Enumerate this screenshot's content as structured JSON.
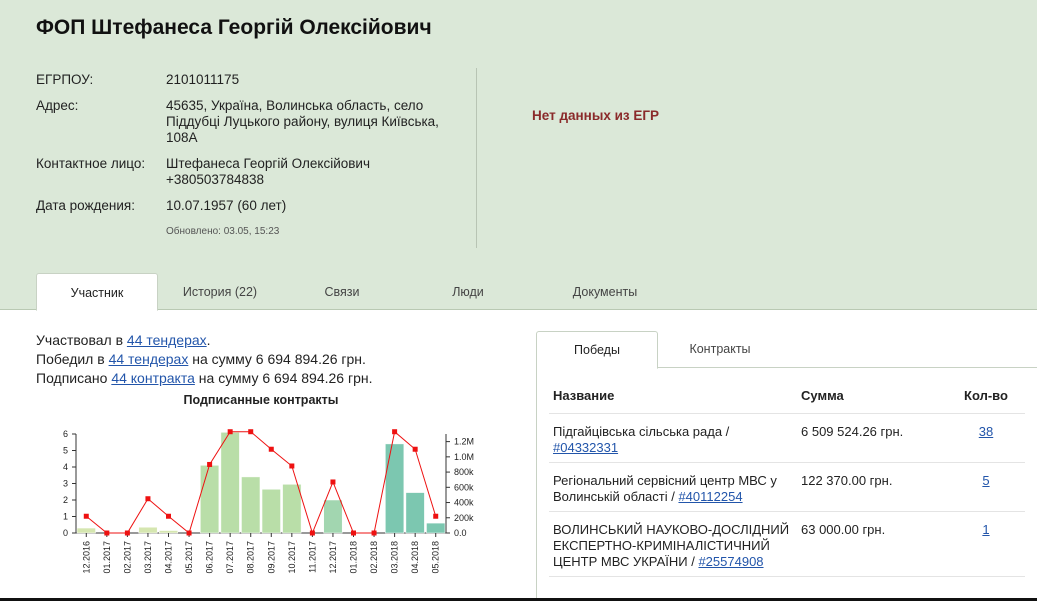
{
  "header": {
    "title": "ФОП Штефанеса Георгій Олексійович",
    "fields": [
      {
        "label": "ЕГРПОУ:",
        "value": "2101011175"
      },
      {
        "label": "Адрес:",
        "value": "45635, Україна, Волинська область, село Піддубці Луцького району, вулиця Київська, 108А"
      },
      {
        "label": "Контактное лицо:",
        "value": "Штефанеса Георгій Олексійович",
        "value2": "+380503784838"
      },
      {
        "label": "Дата рождения:",
        "value": "10.07.1957 (60 лет)"
      }
    ],
    "updated": "Обновлено: 03.05, 15:23",
    "egr_status": "Нет данных из ЕГР"
  },
  "tabs": [
    "Участник",
    "История (22)",
    "Связи",
    "Люди",
    "Документы"
  ],
  "summary": {
    "line1_pre": "Участвовал в ",
    "line1_link": "44 тендерах",
    "line1_post": ".",
    "line2_pre": "Победил в ",
    "line2_link": "44 тендерах",
    "line2_post": " на сумму 6 694 894.26 грн.",
    "line3_pre": "Подписано ",
    "line3_link": "44 контракта",
    "line3_post": " на сумму 6 694 894.26 грн."
  },
  "right_tabs": [
    "Победы",
    "Контракты"
  ],
  "table": {
    "headers": [
      "Название",
      "Сумма",
      "Кол-во"
    ],
    "rows": [
      {
        "name": "Підгайцівська сільська рада / ",
        "code": "#04332331",
        "sum": "6 509 524.26 грн.",
        "count": "38"
      },
      {
        "name": "Регіональний сервісний центр МВС у Волинській області / ",
        "code": "#40112254",
        "sum": "122 370.00 грн.",
        "count": "5"
      },
      {
        "name": "ВОЛИНСЬКИЙ НАУКОВО-ДОСЛІДНИЙ ЕКСПЕРТНО-КРИМІНАЛІСТИЧНИЙ ЦЕНТР МВС УКРАЇНИ / ",
        "code": "#25574908",
        "sum": "63 000.00 грн.",
        "count": "1"
      }
    ]
  },
  "chart_data": {
    "type": "bar",
    "title": "Подписанные контракты",
    "categories": [
      "12.2016",
      "01.2017",
      "02.2017",
      "03.2017",
      "04.2017",
      "05.2017",
      "06.2017",
      "07.2017",
      "08.2017",
      "09.2017",
      "10.2017",
      "11.2017",
      "12.2017",
      "01.2018",
      "02.2018",
      "03.2018",
      "04.2018",
      "05.2018"
    ],
    "left_axis": {
      "ticks": [
        "0",
        "1",
        "2",
        "3",
        "4",
        "5",
        "6"
      ],
      "ylim": [
        0,
        6
      ]
    },
    "right_axis": {
      "ticks": [
        "0.0",
        "200k",
        "400k",
        "600k",
        "800k",
        "1.0M",
        "1.2M"
      ],
      "ylim": [
        0,
        1300000
      ]
    },
    "series": [
      {
        "values": [
          0.3,
          0,
          0,
          0.35,
          0.15,
          0,
          4.1,
          6.1,
          3.4,
          2.65,
          2.95,
          0,
          2.0,
          0,
          0,
          5.4,
          2.45,
          0.6
        ],
        "colors": [
          "#d5e6b0",
          "#d5e6b0",
          "#d5e6b0",
          "#d5e6b0",
          "#d5e6b0",
          "#d5e6b0",
          "#b9dea8",
          "#b9dea8",
          "#b9dea8",
          "#b9dea8",
          "#b9dea8",
          "#a2d6b0",
          "#a2d6b0",
          "#8fcfb2",
          "#8fcfb2",
          "#7cc7b0",
          "#7cc7b0",
          "#7cc7b0"
        ]
      },
      {
        "values": [
          220000,
          0,
          0,
          450000,
          220000,
          0,
          900000,
          1330000,
          1330000,
          1100000,
          880000,
          0,
          670000,
          0,
          0,
          1330000,
          1100000,
          220000
        ],
        "color": "#ee1111"
      }
    ]
  }
}
